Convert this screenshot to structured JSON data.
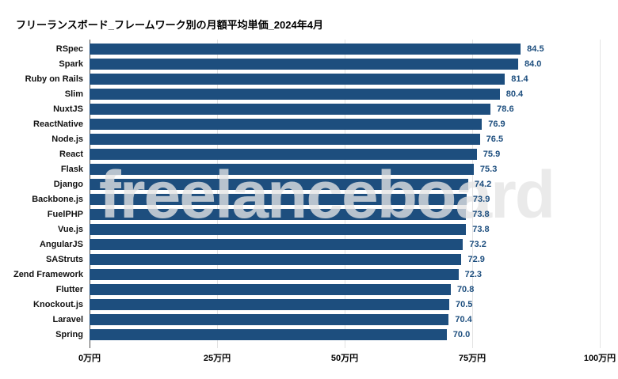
{
  "title": "フリーランスボード_フレームワーク別の月額平均単価_2024年4月",
  "watermark": "freelanceboard",
  "colors": {
    "bar": "#1d4e7e",
    "value_label": "#1d4e7e",
    "grid": "#e3e3e3",
    "axis": "#4a4a4a",
    "title_text": "#000000",
    "category_text": "#111111",
    "watermark_text": "#e4e4e4",
    "background": "#ffffff"
  },
  "chart_data": {
    "type": "bar",
    "orientation": "horizontal",
    "title": "フリーランスボード_フレームワーク別の月額平均単価_2024年4月",
    "categories": [
      "RSpec",
      "Spark",
      "Ruby on Rails",
      "Slim",
      "NuxtJS",
      "ReactNative",
      "Node.js",
      "React",
      "Flask",
      "Django",
      "Backbone.js",
      "FuelPHP",
      "Vue.js",
      "AngularJS",
      "SAStruts",
      "Zend Framework",
      "Flutter",
      "Knockout.js",
      "Laravel",
      "Spring"
    ],
    "values": [
      84.5,
      84.0,
      81.4,
      80.4,
      78.6,
      76.9,
      76.5,
      75.9,
      75.3,
      74.2,
      73.9,
      73.8,
      73.8,
      73.2,
      72.9,
      72.3,
      70.8,
      70.5,
      70.4,
      70.0
    ],
    "value_decimals": 1,
    "value_unit": "万円",
    "xlabel": "",
    "ylabel": "",
    "xlim": [
      0,
      100
    ],
    "x_ticks": [
      {
        "value": 0,
        "label": "0万円"
      },
      {
        "value": 25,
        "label": "25万円"
      },
      {
        "value": 50,
        "label": "50万円"
      },
      {
        "value": 75,
        "label": "75万円"
      },
      {
        "value": 100,
        "label": "100万円"
      }
    ],
    "grid": true,
    "legend": false
  }
}
